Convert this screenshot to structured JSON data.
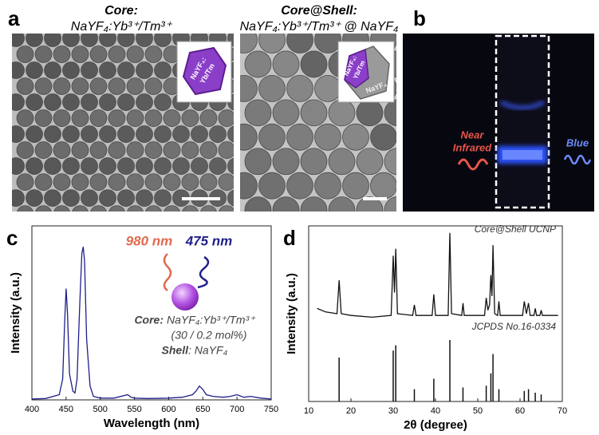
{
  "panel_labels": [
    "a",
    "b",
    "c",
    "d"
  ],
  "panel_a": {
    "core_title": "Core:",
    "core_formula": "NaYF₄:Yb³⁺/Tm³⁺",
    "shell_title": "Core@Shell:",
    "shell_formula": "NaYF₄:Yb³⁺/Tm³⁺ @ NaYF₄",
    "core_inset": [
      "NaYF₄:",
      "Yb/Tm"
    ],
    "shell_inset": [
      "NaYF₄:",
      "Yb/Tm"
    ],
    "shell_inset_outer": "NaYF₄"
  },
  "panel_b": {
    "left_label": [
      "Near",
      "Infrared"
    ],
    "right_label": "Blue"
  },
  "chart_data": [
    {
      "type": "line",
      "xlabel": "Wavelength (nm)",
      "ylabel": "Intensity (a.u.)",
      "color": "#1f1f8a",
      "x": [
        400,
        420,
        440,
        445,
        448,
        450,
        452,
        455,
        460,
        463,
        466,
        470,
        473,
        475,
        477,
        480,
        485,
        490,
        500,
        520,
        540,
        545,
        550,
        570,
        600,
        620,
        635,
        640,
        645,
        650,
        655,
        665,
        680,
        690,
        700,
        710,
        720,
        735,
        750
      ],
      "values": [
        0.5,
        0.8,
        3,
        12,
        45,
        64,
        50,
        15,
        5,
        4,
        12,
        55,
        84,
        88,
        80,
        35,
        8,
        2,
        1,
        1,
        3,
        1.5,
        1,
        0.8,
        1,
        1.5,
        3,
        5,
        8,
        6,
        3,
        2,
        1.5,
        2,
        3,
        1.5,
        2,
        1,
        0.5
      ],
      "xlim": [
        400,
        750
      ],
      "xticks": [
        400,
        450,
        500,
        550,
        600,
        650,
        700,
        750
      ],
      "ylim": [
        0,
        100
      ],
      "annotations": {
        "excitation": "980 nm",
        "emission": "475 nm",
        "core_label": "Core:",
        "core_formula": "NaYF₄:Yb³⁺/Tm³⁺",
        "ratio": "(30 / 0.2 mol%)",
        "shell_label": "Shell",
        "shell_formula": ": NaYF₄"
      }
    },
    {
      "type": "line",
      "xlabel": "2θ (degree)",
      "ylabel": "Intensity (a.u.)",
      "xlim": [
        10,
        70
      ],
      "xticks": [
        10,
        20,
        30,
        40,
        50,
        60,
        70
      ],
      "ylim": [
        0,
        100
      ],
      "series": [
        {
          "name": "Core@Shell UCNP",
          "type": "line",
          "color": "#111111",
          "x": [
            12,
            14,
            16.7,
            17.2,
            17.7,
            20,
            25,
            29.5,
            30,
            30.3,
            30.6,
            31,
            34.6,
            35,
            35.4,
            39.2,
            39.6,
            40,
            43,
            43.4,
            43.8,
            46.2,
            46.5,
            46.8,
            51.6,
            52,
            52.4,
            52.8,
            53.1,
            53.35,
            53.6,
            54,
            54.7,
            55,
            55.3,
            60.6,
            61,
            61.5,
            62,
            62.4,
            63.3,
            63.6,
            63.9,
            64.7,
            65,
            65.3,
            69
          ],
          "values": [
            53,
            51,
            50,
            69,
            50,
            49,
            48,
            49,
            83,
            62,
            87,
            50,
            49,
            55,
            49,
            49,
            61,
            49,
            49,
            96,
            50,
            49,
            56,
            49,
            49,
            59,
            52,
            55,
            72,
            60,
            89,
            50,
            49,
            57,
            49,
            49,
            57,
            50,
            56,
            49,
            49,
            53,
            49,
            49,
            52,
            49,
            49
          ]
        },
        {
          "name": "JCPDS No.16-0334",
          "type": "stem",
          "color": "#111111",
          "x": [
            17.2,
            30.0,
            30.6,
            35,
            39.6,
            43.4,
            46.5,
            52,
            53.1,
            53.6,
            55,
            61,
            62,
            63.6,
            65
          ],
          "values": [
            25,
            29,
            32,
            7,
            13,
            35,
            8,
            9,
            16,
            27,
            7,
            6,
            7,
            5,
            4
          ]
        }
      ]
    }
  ]
}
